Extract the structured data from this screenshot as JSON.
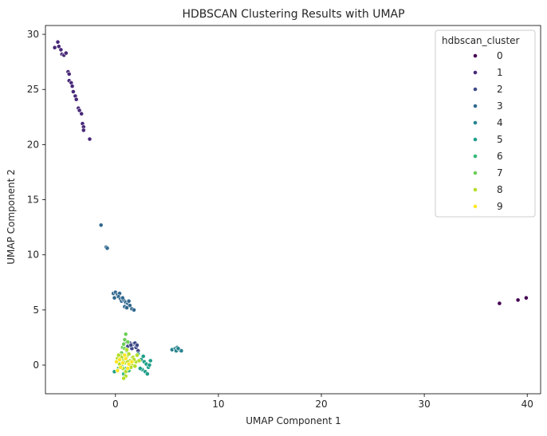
{
  "chart_data": {
    "type": "scatter",
    "title": "HDBSCAN Clustering Results with UMAP",
    "xlabel": "UMAP Component 1",
    "ylabel": "UMAP Component 2",
    "xlim": [
      -6.8,
      41.3
    ],
    "ylim": [
      -2.6,
      30.8
    ],
    "xticks": [
      0,
      10,
      20,
      30,
      40
    ],
    "yticks": [
      0,
      5,
      10,
      15,
      20,
      25,
      30
    ],
    "grid": false,
    "legend": {
      "title": "hdbscan_cluster",
      "placement": "top-right"
    },
    "series": [
      {
        "name": "0",
        "color": "#440154",
        "points": [
          [
            37.3,
            5.6
          ],
          [
            39.1,
            5.9
          ],
          [
            39.9,
            6.1
          ]
        ]
      },
      {
        "name": "1",
        "color": "#482878",
        "points": [
          [
            -5.6,
            29.3
          ],
          [
            -5.5,
            28.9
          ],
          [
            -5.9,
            28.8
          ],
          [
            -5.3,
            28.6
          ],
          [
            -5.2,
            28.2
          ],
          [
            -5.0,
            28.1
          ],
          [
            -4.8,
            28.3
          ],
          [
            -4.6,
            26.6
          ],
          [
            -4.5,
            26.4
          ],
          [
            -4.5,
            25.8
          ],
          [
            -4.3,
            25.6
          ],
          [
            -4.2,
            25.3
          ],
          [
            -4.1,
            24.8
          ],
          [
            -3.9,
            24.4
          ],
          [
            -3.8,
            24.1
          ],
          [
            -3.6,
            23.3
          ],
          [
            -3.5,
            23.1
          ],
          [
            -3.3,
            22.8
          ],
          [
            -3.2,
            21.9
          ],
          [
            -3.1,
            21.6
          ],
          [
            -3.1,
            21.3
          ],
          [
            -2.5,
            20.5
          ]
        ]
      },
      {
        "name": "2",
        "color": "#3e4989",
        "points": [
          [
            1.1,
            2.1
          ],
          [
            1.4,
            2.0
          ],
          [
            1.7,
            1.9
          ],
          [
            1.2,
            1.7
          ],
          [
            1.6,
            1.5
          ],
          [
            2.0,
            1.6
          ],
          [
            1.9,
            2.0
          ],
          [
            2.2,
            1.3
          ],
          [
            1.5,
            1.8
          ],
          [
            2.1,
            1.8
          ]
        ]
      },
      {
        "name": "3",
        "color": "#31688e",
        "points": [
          [
            -1.4,
            12.7
          ],
          [
            -0.9,
            10.7
          ],
          [
            -0.8,
            10.6
          ],
          [
            -0.2,
            6.5
          ],
          [
            0.0,
            6.6
          ],
          [
            0.2,
            6.4
          ],
          [
            0.4,
            6.5
          ],
          [
            0.3,
            6.2
          ],
          [
            0.5,
            6.0
          ],
          [
            -0.1,
            6.1
          ],
          [
            0.6,
            5.8
          ],
          [
            0.8,
            5.9
          ],
          [
            1.0,
            5.7
          ],
          [
            1.2,
            5.6
          ],
          [
            1.4,
            5.4
          ],
          [
            0.9,
            5.3
          ],
          [
            1.1,
            5.2
          ],
          [
            1.6,
            5.1
          ],
          [
            1.8,
            5.0
          ],
          [
            0.7,
            6.1
          ],
          [
            1.3,
            5.8
          ]
        ]
      },
      {
        "name": "4",
        "color": "#26828e",
        "points": [
          [
            5.5,
            1.4
          ],
          [
            5.8,
            1.5
          ],
          [
            6.0,
            1.6
          ],
          [
            6.2,
            1.4
          ],
          [
            5.9,
            1.3
          ],
          [
            6.4,
            1.3
          ],
          [
            6.1,
            1.5
          ]
        ]
      },
      {
        "name": "5",
        "color": "#1f9e89",
        "points": [
          [
            2.5,
            0.5
          ],
          [
            2.8,
            0.3
          ],
          [
            3.0,
            0.1
          ],
          [
            3.2,
            -0.2
          ],
          [
            2.6,
            -0.4
          ],
          [
            2.9,
            -0.6
          ],
          [
            3.4,
            0.4
          ],
          [
            2.7,
            0.8
          ],
          [
            3.1,
            -0.8
          ],
          [
            2.4,
            -0.3
          ],
          [
            3.3,
            0.0
          ],
          [
            -0.1,
            -0.6
          ],
          [
            2.2,
            1.0
          ]
        ]
      },
      {
        "name": "6",
        "color": "#35b779",
        "points": [
          [
            0.3,
            -0.3
          ],
          [
            0.6,
            -0.1
          ],
          [
            1.0,
            -0.3
          ],
          [
            0.4,
            0.2
          ],
          [
            1.3,
            -0.5
          ],
          [
            0.8,
            -0.8
          ]
        ]
      },
      {
        "name": "7",
        "color": "#6ece58",
        "points": [
          [
            0.7,
            1.6
          ],
          [
            0.9,
            2.3
          ],
          [
            1.0,
            2.8
          ],
          [
            0.8,
            1.9
          ],
          [
            1.1,
            1.3
          ],
          [
            0.6,
            1.1
          ],
          [
            1.2,
            2.1
          ],
          [
            0.9,
            1.5
          ]
        ]
      },
      {
        "name": "8",
        "color": "#b5de2b",
        "points": [
          [
            0.2,
            0.6
          ],
          [
            0.5,
            0.9
          ],
          [
            0.8,
            0.5
          ],
          [
            1.1,
            0.8
          ],
          [
            1.4,
            0.4
          ],
          [
            1.7,
            0.7
          ],
          [
            2.0,
            0.3
          ],
          [
            0.4,
            0.1
          ],
          [
            0.9,
            0.2
          ],
          [
            1.3,
            1.0
          ],
          [
            1.6,
            0.0
          ],
          [
            0.7,
            -0.3
          ],
          [
            1.0,
            -0.6
          ],
          [
            1.5,
            -0.2
          ],
          [
            2.1,
            0.9
          ],
          [
            0.6,
            0.7
          ],
          [
            1.2,
            0.3
          ],
          [
            1.8,
            0.5
          ],
          [
            0.3,
            0.9
          ],
          [
            1.0,
            -1.0
          ],
          [
            0.8,
            -1.2
          ],
          [
            1.9,
            -0.1
          ],
          [
            2.3,
            0.4
          ],
          [
            1.1,
            1.4
          ]
        ]
      },
      {
        "name": "9",
        "color": "#fde725",
        "points": [
          [
            0.1,
            0.3
          ],
          [
            0.4,
            0.5
          ],
          [
            0.7,
            0.2
          ],
          [
            1.0,
            0.6
          ],
          [
            1.3,
            0.1
          ],
          [
            0.5,
            -0.2
          ],
          [
            0.9,
            0.9
          ],
          [
            1.6,
            0.3
          ],
          [
            0.2,
            -0.5
          ],
          [
            1.2,
            -0.3
          ]
        ]
      }
    ]
  }
}
